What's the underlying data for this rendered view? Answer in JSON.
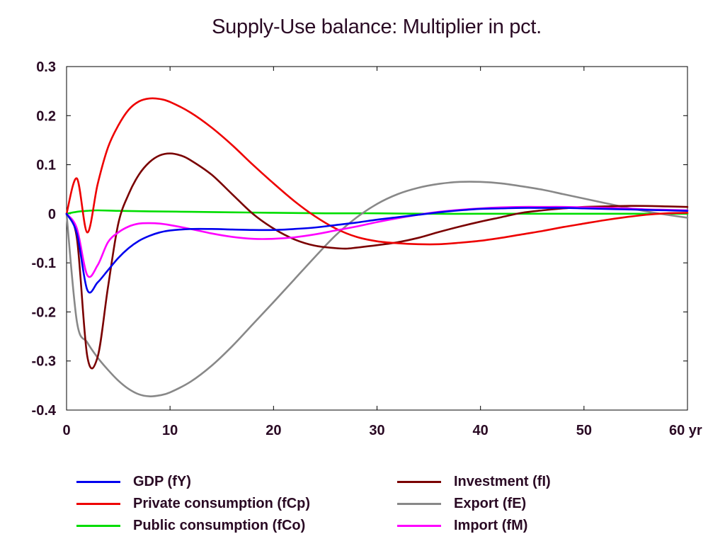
{
  "chart_data": {
    "type": "line",
    "title": "Supply-Use balance: Multiplier in pct.",
    "xlabel": "",
    "ylabel": "",
    "xlim": [
      0,
      60
    ],
    "ylim": [
      -0.4,
      0.3
    ],
    "x_ticks": [
      0,
      10,
      20,
      30,
      40,
      50,
      60
    ],
    "x_tick_labels": [
      "0",
      "10",
      "20",
      "30",
      "40",
      "50",
      "60 yr"
    ],
    "y_ticks": [
      0.3,
      0.2,
      0.1,
      0,
      -0.1,
      -0.2,
      -0.3,
      -0.4
    ],
    "y_tick_labels": [
      "0.3",
      "0.2",
      "0.1",
      "0",
      "-0.1",
      "-0.2",
      "-0.3",
      "-0.4"
    ],
    "grid": false,
    "legend_position": "bottom",
    "series": [
      {
        "name": "GDP (fY)",
        "color": "#0000ee",
        "points": [
          [
            0,
            0
          ],
          [
            1,
            -0.04
          ],
          [
            2,
            -0.155
          ],
          [
            3,
            -0.14
          ],
          [
            4,
            -0.115
          ],
          [
            5,
            -0.09
          ],
          [
            6,
            -0.07
          ],
          [
            7,
            -0.055
          ],
          [
            8,
            -0.045
          ],
          [
            9,
            -0.038
          ],
          [
            10,
            -0.034
          ],
          [
            12,
            -0.031
          ],
          [
            14,
            -0.031
          ],
          [
            16,
            -0.032
          ],
          [
            18,
            -0.033
          ],
          [
            20,
            -0.033
          ],
          [
            22,
            -0.031
          ],
          [
            24,
            -0.028
          ],
          [
            26,
            -0.023
          ],
          [
            28,
            -0.018
          ],
          [
            30,
            -0.012
          ],
          [
            32,
            -0.007
          ],
          [
            34,
            -0.002
          ],
          [
            36,
            0.003
          ],
          [
            38,
            0.007
          ],
          [
            40,
            0.01
          ],
          [
            42,
            0.011
          ],
          [
            44,
            0.012
          ],
          [
            46,
            0.012
          ],
          [
            48,
            0.012
          ],
          [
            50,
            0.011
          ],
          [
            52,
            0.01
          ],
          [
            54,
            0.009
          ],
          [
            56,
            0.008
          ],
          [
            58,
            0.007
          ],
          [
            60,
            0.006
          ]
        ]
      },
      {
        "name": "Private consumption (fCp)",
        "color": "#ee0000",
        "points": [
          [
            0,
            0
          ],
          [
            1,
            0.072
          ],
          [
            2,
            -0.038
          ],
          [
            3,
            0.06
          ],
          [
            4,
            0.135
          ],
          [
            5,
            0.18
          ],
          [
            6,
            0.212
          ],
          [
            7,
            0.229
          ],
          [
            8,
            0.235
          ],
          [
            9,
            0.234
          ],
          [
            10,
            0.228
          ],
          [
            12,
            0.206
          ],
          [
            14,
            0.176
          ],
          [
            16,
            0.14
          ],
          [
            18,
            0.1
          ],
          [
            20,
            0.062
          ],
          [
            22,
            0.026
          ],
          [
            24,
            -0.005
          ],
          [
            26,
            -0.03
          ],
          [
            28,
            -0.047
          ],
          [
            30,
            -0.056
          ],
          [
            32,
            -0.06
          ],
          [
            34,
            -0.062
          ],
          [
            36,
            -0.062
          ],
          [
            38,
            -0.059
          ],
          [
            40,
            -0.055
          ],
          [
            42,
            -0.049
          ],
          [
            44,
            -0.042
          ],
          [
            46,
            -0.035
          ],
          [
            48,
            -0.027
          ],
          [
            50,
            -0.02
          ],
          [
            52,
            -0.013
          ],
          [
            54,
            -0.007
          ],
          [
            56,
            -0.002
          ],
          [
            58,
            0.001
          ],
          [
            60,
            0.002
          ]
        ]
      },
      {
        "name": "Public consumption (fCo)",
        "color": "#00dd00",
        "points": [
          [
            0,
            0
          ],
          [
            1,
            0.004
          ],
          [
            2,
            0.006
          ],
          [
            3,
            0.007
          ],
          [
            5,
            0.006
          ],
          [
            8,
            0.005
          ],
          [
            12,
            0.004
          ],
          [
            16,
            0.003
          ],
          [
            20,
            0.002
          ],
          [
            25,
            0.001
          ],
          [
            30,
            0.001
          ],
          [
            35,
            0
          ],
          [
            40,
            0
          ],
          [
            45,
            0
          ],
          [
            50,
            0
          ],
          [
            55,
            0
          ],
          [
            60,
            0
          ]
        ]
      },
      {
        "name": "Investment (fI)",
        "color": "#7a0000",
        "points": [
          [
            0,
            0
          ],
          [
            1,
            -0.05
          ],
          [
            2,
            -0.29
          ],
          [
            3,
            -0.292
          ],
          [
            4,
            -0.15
          ],
          [
            5,
            -0.02
          ],
          [
            6,
            0.04
          ],
          [
            7,
            0.08
          ],
          [
            8,
            0.105
          ],
          [
            9,
            0.119
          ],
          [
            10,
            0.123
          ],
          [
            11,
            0.119
          ],
          [
            12,
            0.109
          ],
          [
            14,
            0.08
          ],
          [
            16,
            0.04
          ],
          [
            18,
            0.0
          ],
          [
            20,
            -0.03
          ],
          [
            22,
            -0.052
          ],
          [
            24,
            -0.065
          ],
          [
            26,
            -0.07
          ],
          [
            27,
            -0.071
          ],
          [
            28,
            -0.069
          ],
          [
            30,
            -0.064
          ],
          [
            32,
            -0.058
          ],
          [
            34,
            -0.049
          ],
          [
            36,
            -0.037
          ],
          [
            38,
            -0.026
          ],
          [
            40,
            -0.016
          ],
          [
            42,
            -0.007
          ],
          [
            44,
            0.002
          ],
          [
            46,
            0.007
          ],
          [
            48,
            0.011
          ],
          [
            50,
            0.014
          ],
          [
            52,
            0.015
          ],
          [
            54,
            0.016
          ],
          [
            56,
            0.016
          ],
          [
            58,
            0.015
          ],
          [
            60,
            0.014
          ]
        ]
      },
      {
        "name": "Export (fE)",
        "color": "#888888",
        "points": [
          [
            0,
            0
          ],
          [
            1,
            -0.22
          ],
          [
            2,
            -0.262
          ],
          [
            3,
            -0.293
          ],
          [
            4,
            -0.318
          ],
          [
            5,
            -0.34
          ],
          [
            6,
            -0.357
          ],
          [
            7,
            -0.368
          ],
          [
            8,
            -0.372
          ],
          [
            9,
            -0.37
          ],
          [
            10,
            -0.364
          ],
          [
            12,
            -0.342
          ],
          [
            14,
            -0.31
          ],
          [
            16,
            -0.27
          ],
          [
            18,
            -0.225
          ],
          [
            20,
            -0.18
          ],
          [
            22,
            -0.134
          ],
          [
            24,
            -0.088
          ],
          [
            26,
            -0.044
          ],
          [
            28,
            -0.008
          ],
          [
            30,
            0.02
          ],
          [
            32,
            0.04
          ],
          [
            34,
            0.053
          ],
          [
            36,
            0.061
          ],
          [
            38,
            0.065
          ],
          [
            40,
            0.065
          ],
          [
            42,
            0.062
          ],
          [
            44,
            0.056
          ],
          [
            46,
            0.049
          ],
          [
            48,
            0.04
          ],
          [
            50,
            0.031
          ],
          [
            52,
            0.022
          ],
          [
            54,
            0.013
          ],
          [
            56,
            0.005
          ],
          [
            58,
            -0.002
          ],
          [
            60,
            -0.008
          ]
        ]
      },
      {
        "name": "Import (fM)",
        "color": "#ff00ff",
        "points": [
          [
            0,
            0
          ],
          [
            1,
            -0.03
          ],
          [
            2,
            -0.125
          ],
          [
            3,
            -0.105
          ],
          [
            4,
            -0.058
          ],
          [
            5,
            -0.038
          ],
          [
            6,
            -0.026
          ],
          [
            7,
            -0.02
          ],
          [
            8,
            -0.019
          ],
          [
            9,
            -0.02
          ],
          [
            10,
            -0.023
          ],
          [
            12,
            -0.031
          ],
          [
            14,
            -0.04
          ],
          [
            16,
            -0.047
          ],
          [
            18,
            -0.051
          ],
          [
            20,
            -0.051
          ],
          [
            22,
            -0.048
          ],
          [
            24,
            -0.042
          ],
          [
            26,
            -0.034
          ],
          [
            28,
            -0.026
          ],
          [
            30,
            -0.017
          ],
          [
            32,
            -0.009
          ],
          [
            34,
            -0.002
          ],
          [
            36,
            0.004
          ],
          [
            38,
            0.008
          ],
          [
            40,
            0.011
          ],
          [
            42,
            0.013
          ],
          [
            44,
            0.014
          ],
          [
            46,
            0.014
          ],
          [
            48,
            0.014
          ],
          [
            50,
            0.013
          ],
          [
            52,
            0.012
          ],
          [
            54,
            0.011
          ],
          [
            56,
            0.009
          ],
          [
            58,
            0.008
          ],
          [
            60,
            0.007
          ]
        ]
      }
    ]
  }
}
